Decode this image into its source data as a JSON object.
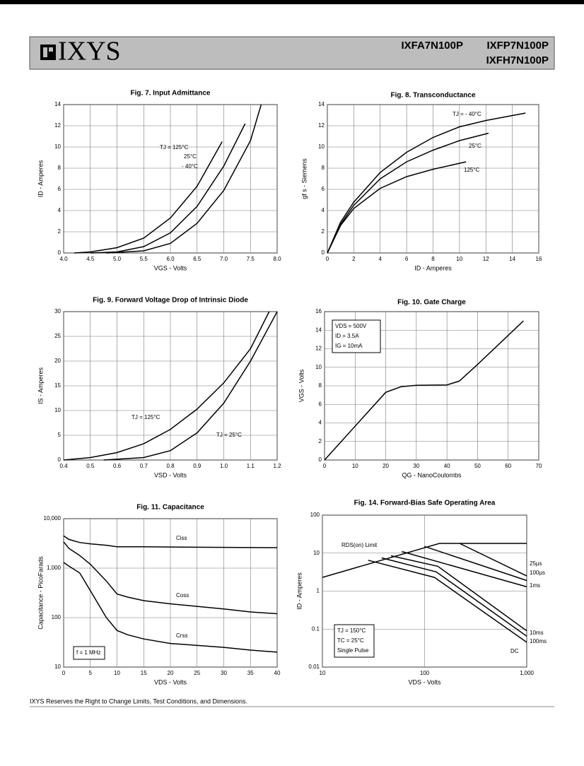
{
  "header": {
    "logo": "IXYS",
    "parts": [
      "IXFA7N100P",
      "IXFP7N100P",
      "IXFH7N100P"
    ]
  },
  "footer": "IXYS Reserves the Right to Change Limits, Test Conditions, and Dimensions.",
  "chart_data": [
    {
      "type": "line",
      "title": "Fig. 7. Input Admittance",
      "xlabel": "VGS - Volts",
      "ylabel": "ID - Amperes",
      "xlim": [
        4,
        8
      ],
      "ylim": [
        0,
        14
      ],
      "xticks": [
        {
          "value": 4,
          "label": "4.0"
        },
        4.5,
        {
          "value": 5,
          "label": "5.0"
        },
        5.5,
        {
          "value": 6,
          "label": "6.0"
        },
        6.5,
        {
          "value": 7,
          "label": "7.0"
        },
        7.5,
        {
          "value": 8,
          "label": "8.0"
        }
      ],
      "yticks": [
        0,
        2,
        4,
        6,
        8,
        10,
        12,
        14
      ],
      "grid": true,
      "series": [
        {
          "name": "TJ = 125°C",
          "color": "#000000",
          "x": [
            4.2,
            4.5,
            5.0,
            5.5,
            6.0,
            6.5,
            6.97
          ],
          "values": [
            0,
            0.1,
            0.5,
            1.4,
            3.3,
            6.3,
            10.5
          ]
        },
        {
          "name": "25°C",
          "color": "#000000",
          "x": [
            4.5,
            5.0,
            5.5,
            6.0,
            6.5,
            7.0,
            7.4
          ],
          "values": [
            0,
            0.1,
            0.6,
            1.9,
            4.4,
            8.2,
            12.2
          ]
        },
        {
          "name": "- 40°C",
          "color": "#000000",
          "x": [
            4.8,
            5.5,
            6.0,
            6.5,
            7.0,
            7.5,
            7.7
          ],
          "values": [
            0,
            0.2,
            0.9,
            2.8,
            5.9,
            10.6,
            14
          ]
        }
      ]
    },
    {
      "type": "line",
      "title": "Fig. 8. Transconductance",
      "xlabel": "ID - Amperes",
      "ylabel": "gf s - Siemens",
      "xlim": [
        0,
        16
      ],
      "ylim": [
        0,
        14
      ],
      "xticks": [
        0,
        2,
        4,
        6,
        8,
        10,
        12,
        14,
        16
      ],
      "yticks": [
        0,
        2,
        4,
        6,
        8,
        10,
        12,
        14
      ],
      "grid": true,
      "series": [
        {
          "name": "TJ = - 40°C",
          "color": "#000000",
          "x": [
            0,
            1,
            2,
            4,
            6,
            8,
            10,
            12,
            15
          ],
          "values": [
            0,
            2.9,
            4.8,
            7.6,
            9.5,
            10.9,
            11.9,
            12.5,
            13.2
          ]
        },
        {
          "name": "25°C",
          "color": "#000000",
          "x": [
            0,
            1,
            2,
            4,
            6,
            8,
            10,
            12.2
          ],
          "values": [
            0,
            2.7,
            4.5,
            7.0,
            8.6,
            9.7,
            10.6,
            11.3
          ]
        },
        {
          "name": "125°C",
          "color": "#000000",
          "x": [
            0,
            1,
            2,
            4,
            6,
            8,
            10.5
          ],
          "values": [
            0,
            2.6,
            4.2,
            6.1,
            7.2,
            7.9,
            8.6
          ]
        }
      ]
    },
    {
      "type": "line",
      "title": "Fig. 9. Forward Voltage Drop of Intrinsic Diode",
      "xlabel": "VSD - Volts",
      "ylabel": "IS - Amperes",
      "xlim": [
        0.4,
        1.2
      ],
      "ylim": [
        0,
        30
      ],
      "xticks": [
        0.4,
        0.5,
        0.6,
        0.7,
        0.8,
        0.9,
        {
          "value": 1,
          "label": "1.0"
        },
        1.1,
        1.2
      ],
      "yticks": [
        0,
        5,
        10,
        15,
        20,
        25,
        30
      ],
      "grid": true,
      "series": [
        {
          "name": "TJ = 125°C",
          "color": "#000000",
          "x": [
            0.4,
            0.5,
            0.6,
            0.7,
            0.8,
            0.9,
            1.0,
            1.1,
            1.17
          ],
          "values": [
            0,
            0.5,
            1.5,
            3.3,
            6.2,
            10.3,
            15.6,
            22.5,
            30
          ]
        },
        {
          "name": "TJ = 25°C",
          "color": "#000000",
          "x": [
            0.55,
            0.7,
            0.8,
            0.9,
            1.0,
            1.1,
            1.2
          ],
          "values": [
            0,
            0.5,
            1.9,
            5.5,
            11.5,
            20,
            30
          ]
        }
      ]
    },
    {
      "type": "line",
      "title": "Fig. 10. Gate Charge",
      "xlabel": "QG - NanoCoulombs",
      "ylabel": "VGS - Volts",
      "xlim": [
        0,
        70
      ],
      "ylim": [
        0,
        16
      ],
      "xticks": [
        0,
        10,
        20,
        30,
        40,
        50,
        60,
        70
      ],
      "yticks": [
        0,
        2,
        4,
        6,
        8,
        10,
        12,
        14,
        16
      ],
      "grid": true,
      "notes": [
        "VDS = 500V",
        "ID = 3.5A",
        "IG = 10mA"
      ],
      "series": [
        {
          "color": "#000000",
          "x": [
            0,
            20,
            25,
            30,
            40,
            44,
            50,
            65
          ],
          "values": [
            0,
            7.3,
            7.9,
            8.05,
            8.1,
            8.5,
            10.3,
            15
          ]
        }
      ]
    },
    {
      "type": "line",
      "title": "Fig. 11. Capacitance",
      "xlabel": "VDS - Volts",
      "ylabel": "Capacitance - PicoFarads",
      "xlim": [
        0,
        40
      ],
      "ylim": [
        10,
        10000
      ],
      "ylog": true,
      "xticks": [
        0,
        5,
        10,
        15,
        20,
        25,
        30,
        35,
        40
      ],
      "yticks": [
        10,
        100,
        {
          "value": 1000,
          "label": "1,000"
        },
        {
          "value": 10000,
          "label": "10,000"
        }
      ],
      "grid": true,
      "notes": [
        "f = 1 MHz"
      ],
      "series": [
        {
          "name": "Ciss",
          "color": "#000000",
          "x": [
            0,
            1,
            3,
            5,
            8,
            10,
            15,
            25,
            40
          ],
          "values": [
            4500,
            3800,
            3300,
            3100,
            2900,
            2700,
            2700,
            2650,
            2600
          ]
        },
        {
          "name": "Coss",
          "color": "#000000",
          "x": [
            0,
            1,
            3,
            5,
            8,
            10,
            12,
            15,
            20,
            30,
            35,
            40
          ],
          "values": [
            3400,
            2500,
            1800,
            1200,
            550,
            300,
            260,
            220,
            190,
            150,
            130,
            120
          ]
        },
        {
          "name": "Crss",
          "color": "#000000",
          "x": [
            0,
            1,
            3,
            5,
            8,
            10,
            12,
            15,
            20,
            30,
            35,
            40
          ],
          "values": [
            1300,
            1100,
            800,
            350,
            100,
            55,
            45,
            37,
            30,
            25,
            22,
            20
          ]
        }
      ]
    },
    {
      "type": "line",
      "title": "Fig. 14. Forward-Bias Safe Operating Area",
      "xlabel": "VDS - Volts",
      "ylabel": "ID - Amperes",
      "xlim": [
        10,
        1000
      ],
      "ylim": [
        0.01,
        100
      ],
      "xlog": true,
      "ylog": true,
      "xticks": [
        10,
        100,
        {
          "value": 1000,
          "label": "1,000"
        }
      ],
      "yticks": [
        0.01,
        0.1,
        1,
        10,
        100
      ],
      "grid": true,
      "notes": [
        "TJ = 150°C",
        "TC = 25°C",
        "Single Pulse"
      ],
      "series": [
        {
          "name": "RDS(on) Limit",
          "color": "#000000",
          "x": [
            10,
            140,
            1000
          ],
          "values": [
            2.3,
            18,
            18
          ]
        },
        {
          "name": "25µs",
          "color": "#000000",
          "x": [
            220,
            1000
          ],
          "values": [
            18,
            2.5
          ]
        },
        {
          "name": "100µs",
          "color": "#000000",
          "x": [
            100,
            1000
          ],
          "values": [
            15,
            1.9
          ]
        },
        {
          "name": "1ms",
          "color": "#000000",
          "x": [
            60,
            1000
          ],
          "values": [
            11,
            1.3
          ]
        },
        {
          "name": "10ms",
          "color": "#000000",
          "x": [
            47,
            135,
            1000
          ],
          "values": [
            8.5,
            4.5,
            0.09
          ]
        },
        {
          "name": "100ms",
          "color": "#000000",
          "x": [
            38,
            130,
            1000
          ],
          "values": [
            7.5,
            3.2,
            0.065
          ]
        },
        {
          "name": "DC",
          "color": "#000000",
          "x": [
            28,
            125,
            1000
          ],
          "values": [
            6.5,
            2.3,
            0.045
          ]
        }
      ]
    }
  ]
}
